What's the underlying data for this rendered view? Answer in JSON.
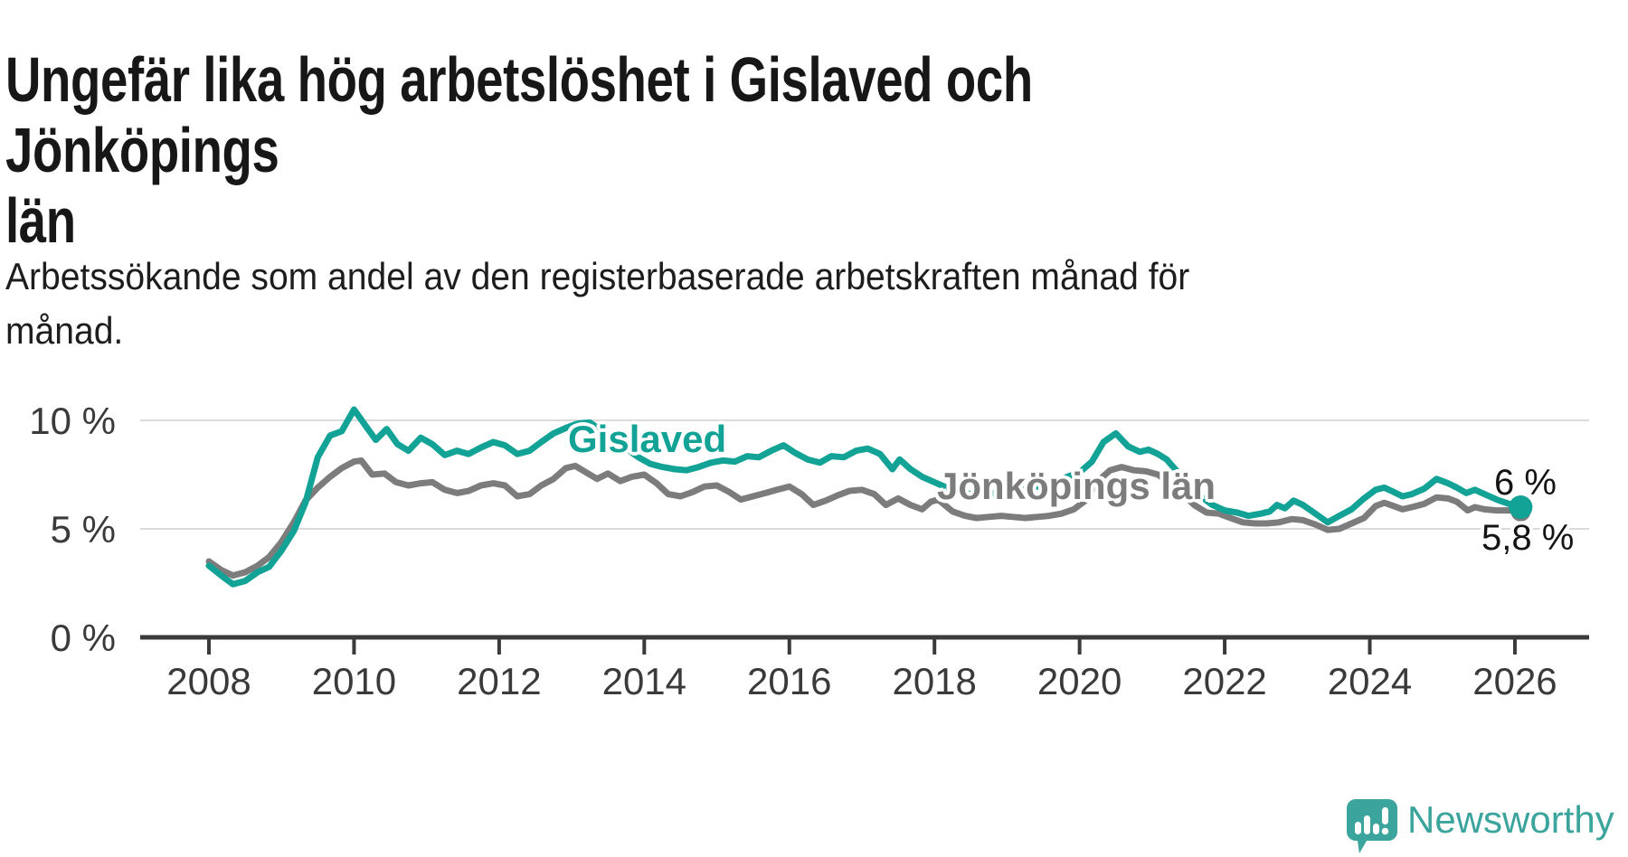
{
  "header": {
    "title": "Ungefär lika hög arbetslöshet i Gislaved och Jönköpings\nlän",
    "subtitle": "Arbetssökande som andel av den registerbaserade arbetskraften månad för\nmånad."
  },
  "footer": {
    "brand": "Newsworthy",
    "brand_color": "#3ba49c"
  },
  "chart_data": {
    "type": "line",
    "title": "Ungefär lika hög arbetslöshet i Gislaved och Jönköpings län",
    "subtitle": "Arbetssökande som andel av den registerbaserade arbetskraften månad för månad.",
    "xlabel": "",
    "ylabel": "",
    "ylim": [
      0,
      11.4
    ],
    "xlim": [
      2007.05,
      2027.0
    ],
    "grid": "horizontal-at-5-and-10",
    "legend_position": "inline-labels-on-lines",
    "y_ticks": [
      {
        "value": 0,
        "label": "0 %"
      },
      {
        "value": 5,
        "label": "5 %"
      },
      {
        "value": 10,
        "label": "10 %"
      }
    ],
    "x_ticks": [
      {
        "value": 2008,
        "label": "2008"
      },
      {
        "value": 2010,
        "label": "2010"
      },
      {
        "value": 2012,
        "label": "2012"
      },
      {
        "value": 2014,
        "label": "2014"
      },
      {
        "value": 2016,
        "label": "2016"
      },
      {
        "value": 2018,
        "label": "2018"
      },
      {
        "value": 2020,
        "label": "2020"
      },
      {
        "value": 2022,
        "label": "2022"
      },
      {
        "value": 2024,
        "label": "2024"
      },
      {
        "value": 2026,
        "label": "2026"
      }
    ],
    "colors": {
      "gislaved": "#12a296",
      "jonkoping": "#7c7c7c",
      "gridline": "#dadada",
      "axis": "#3a3a3a",
      "tick_label": "#3a3a3a"
    },
    "series": [
      {
        "name": "Gislaved",
        "color": "#12a296",
        "end_label": "6 %",
        "end_value": 6.0,
        "points": [
          [
            2008.0,
            3.3
          ],
          [
            2008.17,
            2.85
          ],
          [
            2008.33,
            2.45
          ],
          [
            2008.5,
            2.6
          ],
          [
            2008.67,
            3.0
          ],
          [
            2008.83,
            3.25
          ],
          [
            2009.0,
            4.0
          ],
          [
            2009.17,
            4.9
          ],
          [
            2009.33,
            6.2
          ],
          [
            2009.5,
            8.3
          ],
          [
            2009.67,
            9.3
          ],
          [
            2009.83,
            9.5
          ],
          [
            2010.0,
            10.5
          ],
          [
            2010.17,
            9.7
          ],
          [
            2010.3,
            9.1
          ],
          [
            2010.45,
            9.6
          ],
          [
            2010.6,
            8.9
          ],
          [
            2010.75,
            8.6
          ],
          [
            2010.92,
            9.2
          ],
          [
            2011.08,
            8.9
          ],
          [
            2011.25,
            8.4
          ],
          [
            2011.42,
            8.6
          ],
          [
            2011.58,
            8.45
          ],
          [
            2011.75,
            8.75
          ],
          [
            2011.92,
            9.0
          ],
          [
            2012.08,
            8.85
          ],
          [
            2012.25,
            8.45
          ],
          [
            2012.42,
            8.6
          ],
          [
            2012.58,
            9.0
          ],
          [
            2012.75,
            9.4
          ],
          [
            2012.92,
            9.65
          ],
          [
            2013.08,
            9.85
          ],
          [
            2013.25,
            9.9
          ],
          [
            2013.42,
            9.5
          ],
          [
            2013.58,
            9.1
          ],
          [
            2013.75,
            8.7
          ],
          [
            2013.92,
            8.3
          ],
          [
            2014.08,
            8.0
          ],
          [
            2014.25,
            7.85
          ],
          [
            2014.42,
            7.75
          ],
          [
            2014.58,
            7.7
          ],
          [
            2014.75,
            7.85
          ],
          [
            2014.92,
            8.05
          ],
          [
            2015.08,
            8.15
          ],
          [
            2015.25,
            8.1
          ],
          [
            2015.42,
            8.35
          ],
          [
            2015.58,
            8.3
          ],
          [
            2015.75,
            8.6
          ],
          [
            2015.92,
            8.85
          ],
          [
            2016.08,
            8.5
          ],
          [
            2016.25,
            8.2
          ],
          [
            2016.42,
            8.05
          ],
          [
            2016.58,
            8.35
          ],
          [
            2016.75,
            8.3
          ],
          [
            2016.92,
            8.6
          ],
          [
            2017.08,
            8.7
          ],
          [
            2017.25,
            8.45
          ],
          [
            2017.42,
            7.75
          ],
          [
            2017.52,
            8.2
          ],
          [
            2017.67,
            7.75
          ],
          [
            2017.83,
            7.4
          ],
          [
            2018.0,
            7.15
          ],
          [
            2018.17,
            6.9
          ],
          [
            2018.33,
            6.75
          ],
          [
            2018.5,
            6.6
          ],
          [
            2018.67,
            6.6
          ],
          [
            2018.83,
            6.65
          ],
          [
            2019.0,
            6.7
          ],
          [
            2019.17,
            6.8
          ],
          [
            2019.33,
            6.9
          ],
          [
            2019.5,
            7.0
          ],
          [
            2019.67,
            7.15
          ],
          [
            2019.83,
            7.4
          ],
          [
            2020.0,
            7.6
          ],
          [
            2020.17,
            8.1
          ],
          [
            2020.33,
            9.0
          ],
          [
            2020.5,
            9.4
          ],
          [
            2020.67,
            8.8
          ],
          [
            2020.83,
            8.55
          ],
          [
            2020.95,
            8.65
          ],
          [
            2021.08,
            8.45
          ],
          [
            2021.2,
            8.2
          ],
          [
            2021.33,
            7.7
          ],
          [
            2021.5,
            7.0
          ],
          [
            2021.67,
            6.5
          ],
          [
            2021.83,
            6.1
          ],
          [
            2022.0,
            5.85
          ],
          [
            2022.17,
            5.75
          ],
          [
            2022.33,
            5.6
          ],
          [
            2022.5,
            5.7
          ],
          [
            2022.62,
            5.8
          ],
          [
            2022.72,
            6.1
          ],
          [
            2022.83,
            5.95
          ],
          [
            2022.95,
            6.3
          ],
          [
            2023.08,
            6.1
          ],
          [
            2023.25,
            5.7
          ],
          [
            2023.42,
            5.3
          ],
          [
            2023.58,
            5.6
          ],
          [
            2023.75,
            5.9
          ],
          [
            2023.92,
            6.4
          ],
          [
            2024.08,
            6.8
          ],
          [
            2024.2,
            6.9
          ],
          [
            2024.33,
            6.7
          ],
          [
            2024.45,
            6.5
          ],
          [
            2024.58,
            6.6
          ],
          [
            2024.75,
            6.85
          ],
          [
            2024.92,
            7.3
          ],
          [
            2025.08,
            7.1
          ],
          [
            2025.2,
            6.9
          ],
          [
            2025.33,
            6.65
          ],
          [
            2025.45,
            6.8
          ],
          [
            2025.58,
            6.6
          ],
          [
            2025.75,
            6.35
          ],
          [
            2025.92,
            6.15
          ],
          [
            2026.08,
            6.0
          ]
        ]
      },
      {
        "name": "Jönköpings län",
        "color": "#7c7c7c",
        "end_label": "5,8 %",
        "end_value": 5.8,
        "points": [
          [
            2008.0,
            3.5
          ],
          [
            2008.17,
            3.1
          ],
          [
            2008.33,
            2.85
          ],
          [
            2008.5,
            3.0
          ],
          [
            2008.67,
            3.3
          ],
          [
            2008.83,
            3.7
          ],
          [
            2009.0,
            4.4
          ],
          [
            2009.17,
            5.3
          ],
          [
            2009.33,
            6.3
          ],
          [
            2009.5,
            6.9
          ],
          [
            2009.67,
            7.4
          ],
          [
            2009.83,
            7.8
          ],
          [
            2010.0,
            8.1
          ],
          [
            2010.1,
            8.15
          ],
          [
            2010.25,
            7.5
          ],
          [
            2010.42,
            7.55
          ],
          [
            2010.58,
            7.15
          ],
          [
            2010.75,
            7.0
          ],
          [
            2010.92,
            7.1
          ],
          [
            2011.08,
            7.15
          ],
          [
            2011.25,
            6.8
          ],
          [
            2011.42,
            6.65
          ],
          [
            2011.58,
            6.75
          ],
          [
            2011.75,
            7.0
          ],
          [
            2011.92,
            7.1
          ],
          [
            2012.08,
            7.0
          ],
          [
            2012.25,
            6.5
          ],
          [
            2012.42,
            6.6
          ],
          [
            2012.58,
            7.0
          ],
          [
            2012.75,
            7.3
          ],
          [
            2012.92,
            7.8
          ],
          [
            2013.05,
            7.9
          ],
          [
            2013.2,
            7.6
          ],
          [
            2013.35,
            7.3
          ],
          [
            2013.5,
            7.55
          ],
          [
            2013.67,
            7.2
          ],
          [
            2013.83,
            7.4
          ],
          [
            2014.0,
            7.5
          ],
          [
            2014.17,
            7.1
          ],
          [
            2014.33,
            6.6
          ],
          [
            2014.5,
            6.5
          ],
          [
            2014.67,
            6.7
          ],
          [
            2014.83,
            6.95
          ],
          [
            2015.0,
            7.0
          ],
          [
            2015.17,
            6.7
          ],
          [
            2015.33,
            6.35
          ],
          [
            2015.5,
            6.5
          ],
          [
            2015.67,
            6.65
          ],
          [
            2015.83,
            6.8
          ],
          [
            2016.0,
            6.95
          ],
          [
            2016.17,
            6.6
          ],
          [
            2016.33,
            6.1
          ],
          [
            2016.5,
            6.3
          ],
          [
            2016.67,
            6.55
          ],
          [
            2016.83,
            6.75
          ],
          [
            2017.0,
            6.8
          ],
          [
            2017.17,
            6.6
          ],
          [
            2017.33,
            6.1
          ],
          [
            2017.5,
            6.4
          ],
          [
            2017.67,
            6.1
          ],
          [
            2017.83,
            5.9
          ],
          [
            2017.95,
            6.25
          ],
          [
            2018.05,
            6.35
          ],
          [
            2018.25,
            5.8
          ],
          [
            2018.42,
            5.6
          ],
          [
            2018.58,
            5.5
          ],
          [
            2018.75,
            5.55
          ],
          [
            2018.92,
            5.6
          ],
          [
            2019.08,
            5.55
          ],
          [
            2019.25,
            5.5
          ],
          [
            2019.42,
            5.55
          ],
          [
            2019.58,
            5.6
          ],
          [
            2019.75,
            5.7
          ],
          [
            2019.92,
            5.9
          ],
          [
            2020.08,
            6.3
          ],
          [
            2020.25,
            7.2
          ],
          [
            2020.42,
            7.7
          ],
          [
            2020.58,
            7.85
          ],
          [
            2020.75,
            7.7
          ],
          [
            2020.92,
            7.65
          ],
          [
            2021.08,
            7.5
          ],
          [
            2021.25,
            7.1
          ],
          [
            2021.42,
            6.6
          ],
          [
            2021.58,
            6.1
          ],
          [
            2021.75,
            5.75
          ],
          [
            2021.92,
            5.7
          ],
          [
            2022.08,
            5.5
          ],
          [
            2022.25,
            5.3
          ],
          [
            2022.42,
            5.25
          ],
          [
            2022.58,
            5.25
          ],
          [
            2022.75,
            5.3
          ],
          [
            2022.92,
            5.45
          ],
          [
            2023.08,
            5.4
          ],
          [
            2023.25,
            5.2
          ],
          [
            2023.42,
            4.95
          ],
          [
            2023.58,
            5.0
          ],
          [
            2023.75,
            5.25
          ],
          [
            2023.92,
            5.5
          ],
          [
            2024.08,
            6.05
          ],
          [
            2024.2,
            6.2
          ],
          [
            2024.33,
            6.05
          ],
          [
            2024.45,
            5.9
          ],
          [
            2024.58,
            6.0
          ],
          [
            2024.75,
            6.15
          ],
          [
            2024.92,
            6.45
          ],
          [
            2025.08,
            6.4
          ],
          [
            2025.2,
            6.25
          ],
          [
            2025.35,
            5.85
          ],
          [
            2025.45,
            6.0
          ],
          [
            2025.58,
            5.9
          ],
          [
            2025.75,
            5.85
          ],
          [
            2025.92,
            5.85
          ],
          [
            2026.08,
            5.8
          ]
        ]
      }
    ]
  }
}
